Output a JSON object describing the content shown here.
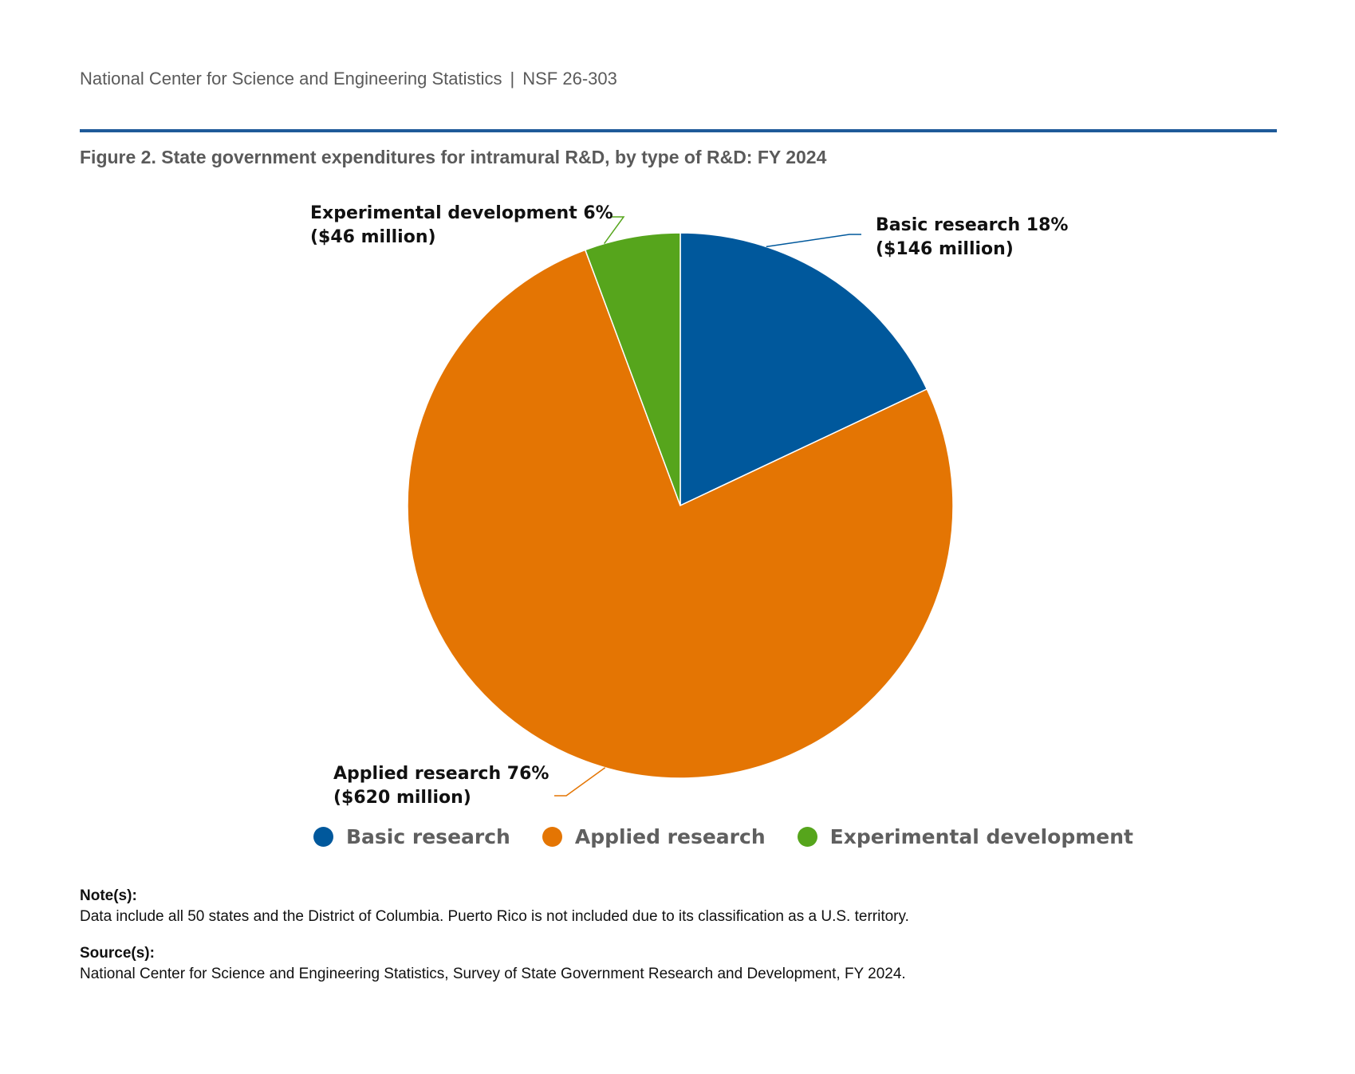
{
  "header": {
    "org": "National Center for Science and Engineering Statistics",
    "separator": "|",
    "report_id": "NSF 26-303"
  },
  "figure_title": "Figure 2. State government expenditures for intramural R&D, by type of R&D: FY 2024",
  "chart_data": {
    "type": "pie",
    "categories": [
      "Basic research",
      "Applied research",
      "Experimental development"
    ],
    "values": [
      146,
      620,
      46
    ],
    "percents": [
      18,
      76,
      6
    ],
    "unit": "$ million",
    "colors": [
      "#00589c",
      "#e47503",
      "#56a51c"
    ],
    "labels": [
      {
        "line1": "Basic research 18%",
        "line2": "($146 million)"
      },
      {
        "line1": "Applied research 76%",
        "line2": "($620 million)"
      },
      {
        "line1": "Experimental development 6%",
        "line2": "($46 million)"
      }
    ],
    "legend": [
      "Basic research",
      "Applied research",
      "Experimental development"
    ],
    "legend_position": "bottom"
  },
  "notes": {
    "note_heading": "Note(s):",
    "note_text": "Data include all 50 states and the District of Columbia. Puerto Rico is not included due to its classification as a U.S. territory.",
    "source_heading": "Source(s):",
    "source_text": "National Center for Science and Engineering Statistics, Survey of State Government Research and Development, FY 2024."
  }
}
